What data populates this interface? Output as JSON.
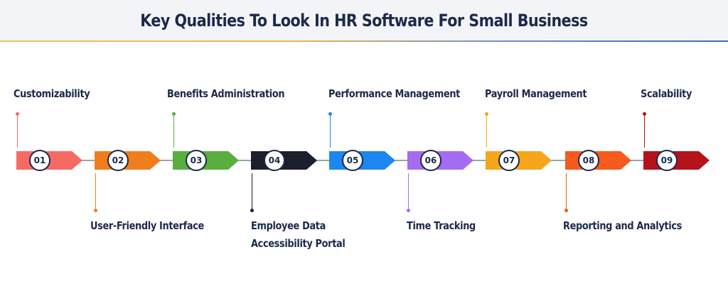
{
  "title": "Key Qualities To Look In HR Software For Small Business",
  "steps": [
    {
      "number": "01",
      "label": "Customizability",
      "color": "#f76a63"
    },
    {
      "number": "02",
      "label": "User-Friendly Interface",
      "color": "#f07d1c"
    },
    {
      "number": "03",
      "label": "Benefits Administration",
      "color": "#5aae3f"
    },
    {
      "number": "04",
      "label": "Employee Data Accessibility Portal",
      "label_lines": [
        "Employee Data",
        "Accessibility Portal"
      ],
      "color": "#1b1f2e"
    },
    {
      "number": "05",
      "label": "Performance Management",
      "color": "#1e86ef"
    },
    {
      "number": "06",
      "label": "Time Tracking",
      "color": "#a46cf0"
    },
    {
      "number": "07",
      "label": "Payroll Management",
      "color": "#f7a51b"
    },
    {
      "number": "08",
      "label": "Reporting and Analytics",
      "color": "#f65a1c"
    },
    {
      "number": "09",
      "label": "Scalability",
      "color": "#b5121b"
    }
  ]
}
